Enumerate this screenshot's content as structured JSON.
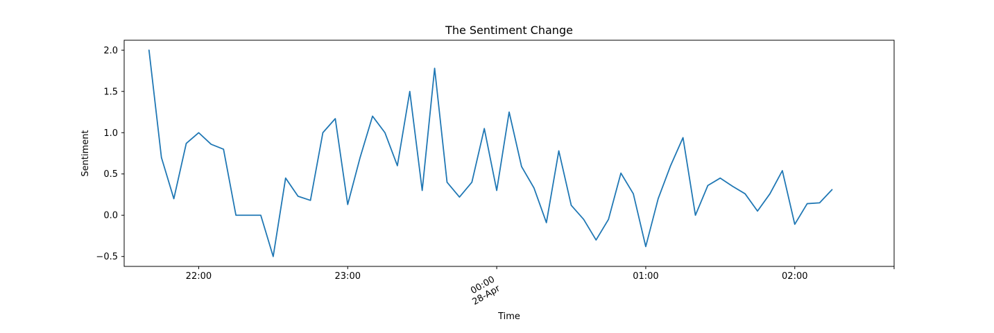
{
  "chart_data": {
    "type": "line",
    "title": "The Sentiment Change",
    "xlabel": "Time",
    "ylabel": "Sentiment",
    "x_axis_kind": "time",
    "x_start": "2023-04-27 21:40",
    "x_step": "5min",
    "xlim": [
      "2023-04-27 21:30",
      "2023-04-28 02:40"
    ],
    "ylim": [
      -0.62,
      2.12
    ],
    "x_ticks": [
      {
        "time": "2023-04-27 22:00",
        "label": "22:00",
        "label2": ""
      },
      {
        "time": "2023-04-27 23:00",
        "label": "23:00",
        "label2": ""
      },
      {
        "time": "2023-04-28 00:00",
        "label": "00:00",
        "label2": "28-Apr",
        "rotated": true
      },
      {
        "time": "2023-04-28 01:00",
        "label": "01:00",
        "label2": ""
      },
      {
        "time": "2023-04-28 02:00",
        "label": "02:00",
        "label2": ""
      },
      {
        "time": "2023-04-28 02:40",
        "label": "",
        "label2": ""
      }
    ],
    "y_ticks": [
      -0.5,
      0.0,
      0.5,
      1.0,
      1.5,
      2.0
    ],
    "y_tick_labels": [
      "−0.5",
      "0.0",
      "0.5",
      "1.0",
      "1.5",
      "2.0"
    ],
    "grid": false,
    "series": [
      {
        "color": "#1f77b4",
        "values": [
          2.0,
          0.7,
          0.2,
          0.87,
          1.0,
          0.86,
          0.8,
          0.0,
          0.0,
          0.0,
          -0.5,
          0.45,
          0.23,
          0.18,
          1.0,
          1.17,
          0.13,
          0.7,
          1.2,
          1.0,
          0.6,
          1.5,
          0.3,
          1.78,
          0.4,
          0.22,
          0.4,
          1.05,
          0.3,
          1.25,
          0.59,
          0.33,
          -0.09,
          0.78,
          0.12,
          -0.05,
          -0.3,
          -0.05,
          0.51,
          0.26,
          -0.38,
          0.2,
          0.6,
          0.94,
          0.0,
          0.36,
          0.45,
          0.35,
          0.26,
          0.05,
          0.26,
          0.54,
          -0.11,
          0.14,
          0.15,
          0.31
        ]
      }
    ]
  }
}
